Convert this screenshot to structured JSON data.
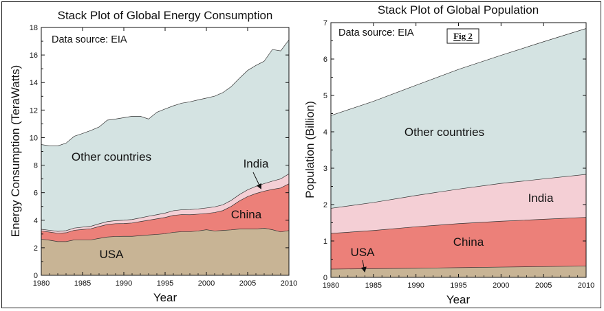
{
  "colors": {
    "usa": "#c8b495",
    "china": "#ec8079",
    "india": "#f4cfd5",
    "other": "#d4e3e2",
    "frame": "#222222"
  },
  "chart_data": [
    {
      "type": "area",
      "stacked": true,
      "title": "Stack Plot of Global Energy Consumption",
      "xlabel": "Year",
      "ylabel": "Energy Consumption (TeraWatts)",
      "source_note": "Data source: EIA",
      "xlim": [
        1980,
        2010
      ],
      "ylim": [
        0,
        18
      ],
      "xticks": [
        "1980",
        "1985",
        "1990",
        "1995",
        "2000",
        "2005",
        "2010"
      ],
      "yticks": [
        "0",
        "2",
        "4",
        "6",
        "8",
        "10",
        "12",
        "14",
        "16",
        "18"
      ],
      "x": [
        1980,
        1981,
        1982,
        1983,
        1984,
        1985,
        1986,
        1987,
        1988,
        1989,
        1990,
        1991,
        1992,
        1993,
        1994,
        1995,
        1996,
        1997,
        1998,
        1999,
        2000,
        2001,
        2002,
        2003,
        2004,
        2005,
        2006,
        2007,
        2008,
        2009,
        2010
      ],
      "series": [
        {
          "name": "USA",
          "values": [
            2.62,
            2.55,
            2.45,
            2.45,
            2.57,
            2.57,
            2.57,
            2.68,
            2.78,
            2.82,
            2.83,
            2.83,
            2.88,
            2.93,
            2.97,
            3.02,
            3.12,
            3.17,
            3.17,
            3.22,
            3.31,
            3.22,
            3.26,
            3.3,
            3.36,
            3.36,
            3.36,
            3.42,
            3.31,
            3.15,
            3.25
          ]
        },
        {
          "name": "China",
          "values": [
            0.6,
            0.59,
            0.6,
            0.64,
            0.7,
            0.76,
            0.81,
            0.86,
            0.91,
            0.93,
            0.93,
            0.97,
            1.02,
            1.07,
            1.13,
            1.18,
            1.23,
            1.24,
            1.23,
            1.22,
            1.18,
            1.34,
            1.44,
            1.7,
            2.04,
            2.36,
            2.58,
            2.69,
            2.93,
            3.19,
            3.4
          ]
        },
        {
          "name": "India",
          "values": [
            0.12,
            0.13,
            0.14,
            0.15,
            0.16,
            0.17,
            0.18,
            0.2,
            0.21,
            0.22,
            0.24,
            0.25,
            0.27,
            0.29,
            0.3,
            0.32,
            0.34,
            0.35,
            0.37,
            0.38,
            0.4,
            0.41,
            0.42,
            0.44,
            0.46,
            0.49,
            0.52,
            0.55,
            0.6,
            0.66,
            0.72
          ]
        },
        {
          "name": "Other countries",
          "values": [
            6.16,
            6.13,
            6.21,
            6.36,
            6.67,
            6.8,
            6.96,
            7.03,
            7.37,
            7.38,
            7.45,
            7.5,
            7.38,
            7.06,
            7.44,
            7.56,
            7.62,
            7.74,
            7.83,
            7.92,
            7.98,
            8.04,
            8.15,
            8.26,
            8.45,
            8.67,
            8.78,
            8.89,
            9.56,
            9.3,
            9.73
          ]
        }
      ]
    },
    {
      "type": "area",
      "stacked": true,
      "title": "Stack Plot of Global Population",
      "xlabel": "Year",
      "ylabel": "Population (Billion)",
      "source_note": "Data source: EIA",
      "fig_label": "Fig 2",
      "xlim": [
        1980,
        2010
      ],
      "ylim": [
        0,
        7
      ],
      "xticks": [
        "1980",
        "1985",
        "1990",
        "1995",
        "2000",
        "2005",
        "2010"
      ],
      "yticks": [
        "0",
        "1",
        "2",
        "3",
        "4",
        "5",
        "6",
        "7"
      ],
      "x": [
        1980,
        1985,
        1990,
        1995,
        2000,
        2005,
        2010
      ],
      "series": [
        {
          "name": "USA",
          "values": [
            0.227,
            0.238,
            0.25,
            0.266,
            0.282,
            0.296,
            0.31
          ]
        },
        {
          "name": "China",
          "values": [
            0.98,
            1.05,
            1.14,
            1.21,
            1.26,
            1.3,
            1.34
          ]
        },
        {
          "name": "India",
          "values": [
            0.69,
            0.77,
            0.86,
            0.95,
            1.04,
            1.11,
            1.18
          ]
        },
        {
          "name": "Other countries",
          "values": [
            2.55,
            2.78,
            3.03,
            3.29,
            3.52,
            3.77,
            4.01
          ]
        }
      ]
    }
  ]
}
